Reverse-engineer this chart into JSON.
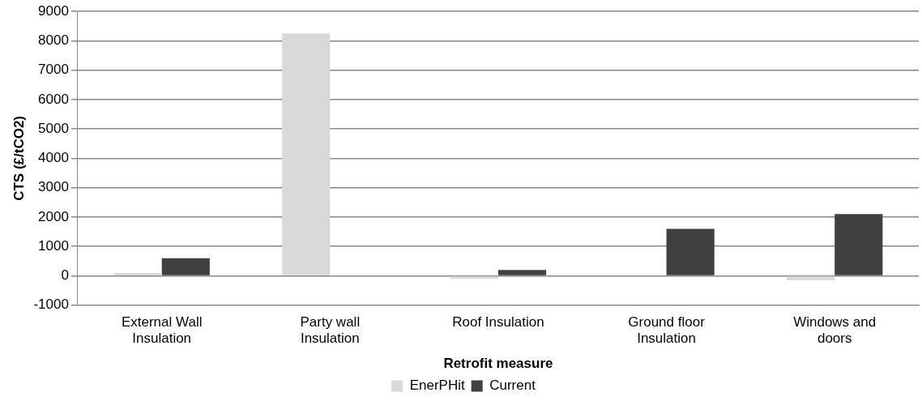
{
  "chart_data": {
    "type": "bar",
    "xlabel": "Retrofit measure",
    "ylabel": "CTS (£/tCO2)",
    "categories": [
      "External Wall Insulation",
      "Party wall Insulation",
      "Roof Insulation",
      "Ground floor Insulation",
      "Windows and doors"
    ],
    "series": [
      {
        "name": "EnerPHit",
        "color": "#d9d9d9",
        "values": [
          100,
          8250,
          -100,
          0,
          -150
        ]
      },
      {
        "name": "Current",
        "color": "#404040",
        "values": [
          600,
          0,
          200,
          1600,
          2100
        ]
      }
    ],
    "ylim": [
      -1000,
      9000
    ],
    "yticks": [
      -1000,
      0,
      1000,
      2000,
      3000,
      4000,
      5000,
      6000,
      7000,
      8000,
      9000
    ],
    "grid": "y",
    "legend": "bottom"
  }
}
